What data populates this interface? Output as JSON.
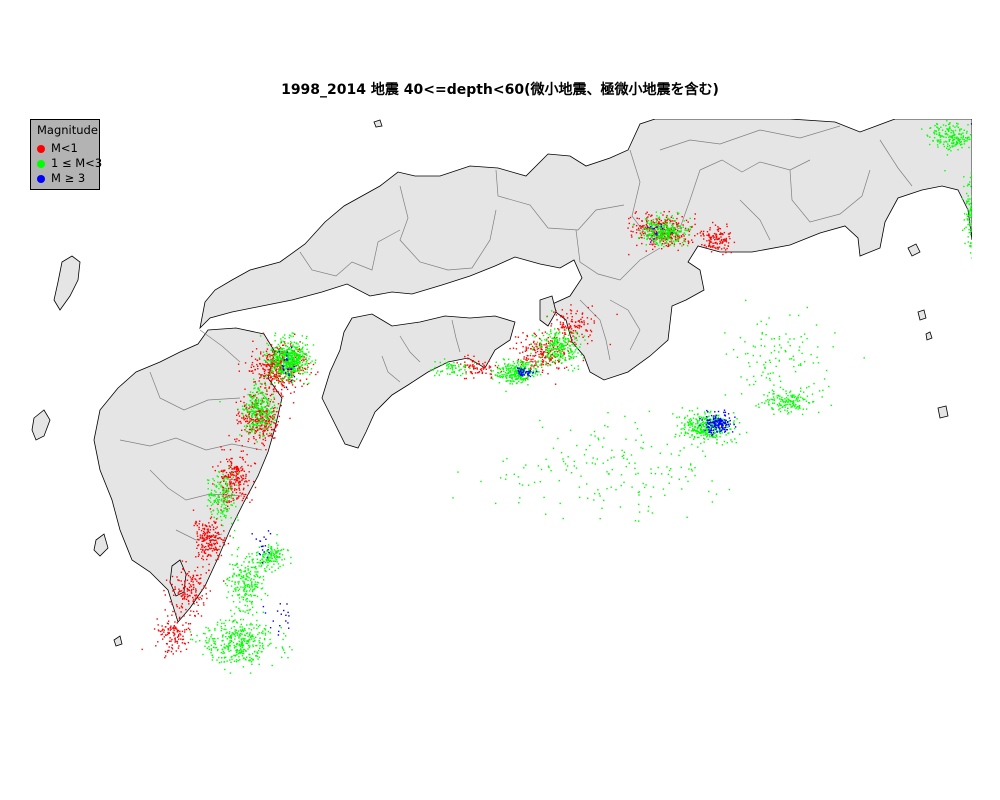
{
  "title": "1998_2014 地震 40<=depth<60(微小地震、極微小地震を含む)",
  "legend": {
    "title": "Magnitude",
    "items": [
      {
        "label": "M<1",
        "color": "#ff0000"
      },
      {
        "label": "1 ≤ M<3",
        "color": "#00ff00"
      },
      {
        "label": "M ≥ 3",
        "color": "#0000ff"
      }
    ]
  },
  "colors": {
    "land": "#e5e5e5",
    "coastline": "#000000",
    "prefecture_border": "#808080",
    "legend_background": "#b3b3b3"
  },
  "chart_data": {
    "type": "scatter",
    "title": "1998_2014 地震 40<=depth<60(微小地震、極微小地震を含む)",
    "legend_placement": "top-left",
    "xlim": [
      129.0,
      141.2
    ],
    "ylim": [
      30.3,
      36.9
    ],
    "x_unit": "longitude (deg E)",
    "y_unit": "latitude (deg N)",
    "series": [
      {
        "name": "M<1",
        "color": "#ff0000",
        "clusters": [
          {
            "lon": 132.4,
            "lat": 34.0,
            "spread_lon": 0.28,
            "spread_lat": 0.22,
            "count": 420
          },
          {
            "lon": 132.15,
            "lat": 33.4,
            "spread_lon": 0.22,
            "spread_lat": 0.3,
            "count": 300
          },
          {
            "lon": 131.85,
            "lat": 32.7,
            "spread_lon": 0.18,
            "spread_lat": 0.25,
            "count": 220
          },
          {
            "lon": 131.55,
            "lat": 32.0,
            "spread_lon": 0.18,
            "spread_lat": 0.25,
            "count": 200
          },
          {
            "lon": 131.3,
            "lat": 31.4,
            "spread_lon": 0.2,
            "spread_lat": 0.25,
            "count": 160
          },
          {
            "lon": 131.1,
            "lat": 30.9,
            "spread_lon": 0.2,
            "spread_lat": 0.2,
            "count": 120
          },
          {
            "lon": 135.6,
            "lat": 34.15,
            "spread_lon": 0.28,
            "spread_lat": 0.2,
            "count": 200
          },
          {
            "lon": 136.0,
            "lat": 34.5,
            "spread_lon": 0.25,
            "spread_lat": 0.18,
            "count": 120
          },
          {
            "lon": 137.1,
            "lat": 35.6,
            "spread_lon": 0.35,
            "spread_lat": 0.18,
            "count": 320
          },
          {
            "lon": 137.75,
            "lat": 35.5,
            "spread_lon": 0.15,
            "spread_lat": 0.12,
            "count": 120
          },
          {
            "lon": 134.8,
            "lat": 34.0,
            "spread_lon": 0.25,
            "spread_lat": 0.12,
            "count": 70
          }
        ]
      },
      {
        "name": "1 ≤ M<3",
        "color": "#00ff00",
        "clusters": [
          {
            "lon": 132.5,
            "lat": 34.1,
            "spread_lon": 0.22,
            "spread_lat": 0.2,
            "count": 520
          },
          {
            "lon": 132.15,
            "lat": 33.5,
            "spread_lon": 0.18,
            "spread_lat": 0.25,
            "count": 260
          },
          {
            "lon": 131.7,
            "lat": 32.5,
            "spread_lon": 0.15,
            "spread_lat": 0.25,
            "count": 150
          },
          {
            "lon": 132.0,
            "lat": 31.5,
            "spread_lon": 0.22,
            "spread_lat": 0.3,
            "count": 220
          },
          {
            "lon": 131.9,
            "lat": 30.8,
            "spread_lon": 0.4,
            "spread_lat": 0.25,
            "count": 380
          },
          {
            "lon": 132.3,
            "lat": 31.8,
            "spread_lon": 0.15,
            "spread_lat": 0.12,
            "count": 120
          },
          {
            "lon": 135.3,
            "lat": 33.95,
            "spread_lon": 0.22,
            "spread_lat": 0.12,
            "count": 280
          },
          {
            "lon": 135.8,
            "lat": 34.25,
            "spread_lon": 0.25,
            "spread_lat": 0.2,
            "count": 250
          },
          {
            "lon": 137.1,
            "lat": 35.6,
            "spread_lon": 0.25,
            "spread_lat": 0.14,
            "count": 280
          },
          {
            "lon": 137.6,
            "lat": 33.3,
            "spread_lon": 0.25,
            "spread_lat": 0.15,
            "count": 320
          },
          {
            "lon": 138.6,
            "lat": 33.6,
            "spread_lon": 0.25,
            "spread_lat": 0.12,
            "count": 140
          },
          {
            "lon": 140.9,
            "lat": 35.8,
            "spread_lon": 0.12,
            "spread_lat": 0.4,
            "count": 280
          },
          {
            "lon": 140.6,
            "lat": 36.7,
            "spread_lon": 0.25,
            "spread_lat": 0.15,
            "count": 200
          },
          {
            "lon": 134.5,
            "lat": 34.0,
            "spread_lon": 0.2,
            "spread_lat": 0.08,
            "count": 60
          },
          {
            "lon": 136.5,
            "lat": 32.8,
            "spread_lon": 1.2,
            "spread_lat": 0.5,
            "count": 180
          },
          {
            "lon": 138.5,
            "lat": 34.1,
            "spread_lon": 0.6,
            "spread_lat": 0.5,
            "count": 120
          }
        ]
      },
      {
        "name": "M ≥ 3",
        "color": "#0000ff",
        "clusters": [
          {
            "lon": 137.75,
            "lat": 33.35,
            "spread_lon": 0.15,
            "spread_lat": 0.1,
            "count": 170
          },
          {
            "lon": 135.4,
            "lat": 33.95,
            "spread_lon": 0.1,
            "spread_lat": 0.06,
            "count": 45
          },
          {
            "lon": 132.5,
            "lat": 34.0,
            "spread_lon": 0.12,
            "spread_lat": 0.3,
            "count": 25
          },
          {
            "lon": 140.95,
            "lat": 36.8,
            "spread_lon": 0.1,
            "spread_lat": 0.08,
            "count": 30
          },
          {
            "lon": 132.2,
            "lat": 31.9,
            "spread_lon": 0.12,
            "spread_lat": 0.12,
            "count": 20
          },
          {
            "lon": 132.4,
            "lat": 31.1,
            "spread_lon": 0.2,
            "spread_lat": 0.15,
            "count": 18
          },
          {
            "lon": 137.0,
            "lat": 35.6,
            "spread_lon": 0.15,
            "spread_lat": 0.1,
            "count": 15
          }
        ]
      }
    ]
  }
}
